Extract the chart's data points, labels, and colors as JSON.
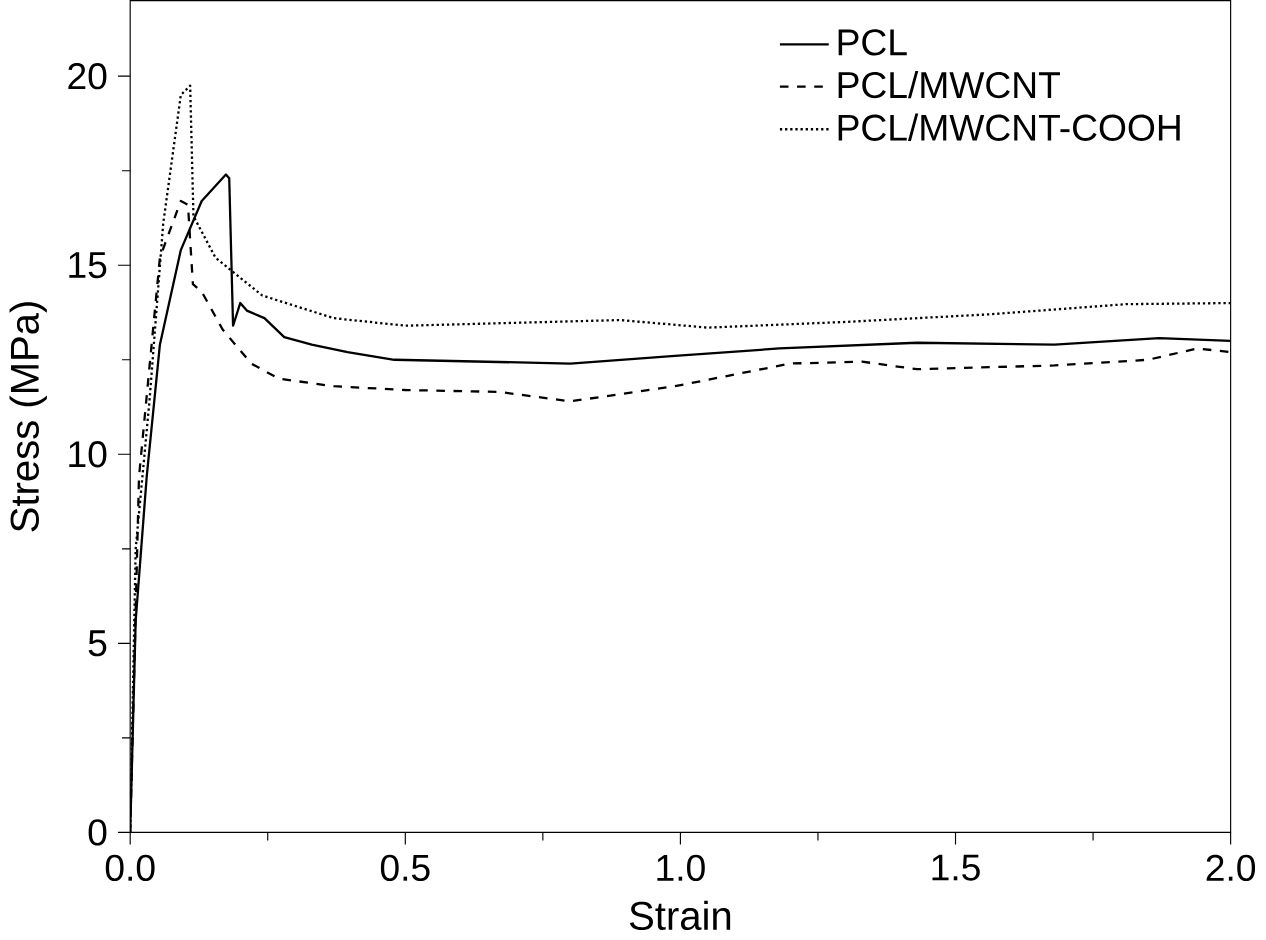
{
  "chart_data": {
    "type": "line",
    "xlabel": "Strain",
    "ylabel": "Stress (MPa)",
    "xlim": [
      0,
      2
    ],
    "ylim": [
      0,
      22
    ],
    "xticks": [
      {
        "value": 0,
        "label": "0.0"
      },
      {
        "value": 0.5,
        "label": "0.5"
      },
      {
        "value": 1,
        "label": "1.0"
      },
      {
        "value": 1.5,
        "label": "1.5"
      },
      {
        "value": 2,
        "label": "2.0"
      }
    ],
    "yticks": [
      0,
      5,
      10,
      15,
      20
    ],
    "legend": "top right",
    "grid": false,
    "series": [
      {
        "name": "PCL",
        "color": "#000000",
        "line_style": "solid",
        "x": [
          0,
          0.01,
          0.03,
          0.054,
          0.092,
          0.13,
          0.174,
          0.18,
          0.187,
          0.2,
          0.212,
          0.244,
          0.28,
          0.33,
          0.395,
          0.48,
          0.8,
          0.99,
          1.18,
          1.43,
          1.68,
          1.87,
          2.0
        ],
        "values": [
          0,
          5.6,
          9.4,
          12.9,
          15.4,
          16.7,
          17.4,
          17.3,
          13.4,
          14.0,
          13.8,
          13.6,
          13.1,
          12.9,
          12.7,
          12.5,
          12.4,
          12.6,
          12.8,
          12.95,
          12.9,
          13.07,
          13.0
        ]
      },
      {
        "name": "PCL/MWCNT",
        "color": "#000000",
        "line_style": "dashed",
        "x": [
          0,
          0.016,
          0.054,
          0.092,
          0.105,
          0.114,
          0.13,
          0.168,
          0.22,
          0.27,
          0.37,
          0.5,
          0.67,
          0.8,
          0.99,
          1.2,
          1.33,
          1.43,
          1.68,
          1.85,
          1.94,
          2.0
        ],
        "values": [
          0,
          9.4,
          15.2,
          16.7,
          16.6,
          14.5,
          14.3,
          13.3,
          12.4,
          12.0,
          11.8,
          11.7,
          11.65,
          11.4,
          11.8,
          12.4,
          12.45,
          12.25,
          12.35,
          12.5,
          12.8,
          12.7
        ]
      },
      {
        "name": "PCL/MWCNT-COOH",
        "color": "#000000",
        "line_style": "dotted",
        "x": [
          0,
          0.01,
          0.035,
          0.06,
          0.092,
          0.109,
          0.115,
          0.155,
          0.24,
          0.37,
          0.5,
          0.89,
          1.05,
          1.3,
          1.56,
          1.81,
          2.0
        ],
        "values": [
          0,
          7.5,
          11.4,
          16.1,
          19.5,
          19.75,
          16.3,
          15.2,
          14.2,
          13.6,
          13.4,
          13.55,
          13.35,
          13.5,
          13.7,
          13.97,
          14.0
        ]
      }
    ]
  }
}
